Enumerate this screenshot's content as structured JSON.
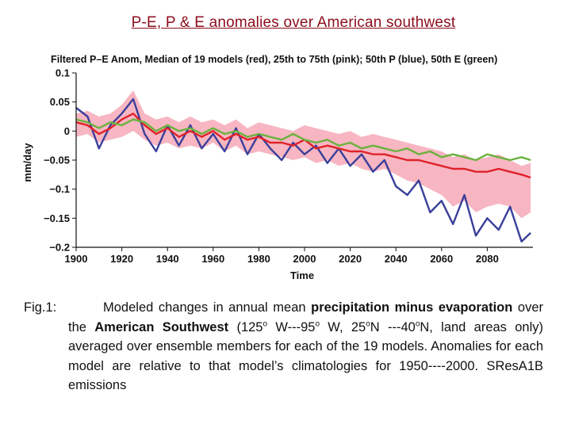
{
  "slide": {
    "title": "P-E, P & E anomalies over American southwest"
  },
  "chart_data": {
    "type": "line",
    "title": "Filtered P–E Anom, Median of 19 models (red), 25th to 75th (pink); 50th P (blue), 50th E (green)",
    "xlabel": "Time",
    "ylabel": "mm/day",
    "xlim": [
      1900,
      2100
    ],
    "ylim": [
      -0.2,
      0.1
    ],
    "x_ticks": [
      "1900",
      "1920",
      "1940",
      "1960",
      "1980",
      "2000",
      "2020",
      "2040",
      "2060",
      "2080"
    ],
    "y_ticks": [
      "0.1",
      "0.05",
      "0",
      "−0.05",
      "−0.1",
      "−0.15",
      "−0.2"
    ],
    "x": [
      1900,
      1905,
      1910,
      1915,
      1920,
      1925,
      1930,
      1935,
      1940,
      1945,
      1950,
      1955,
      1960,
      1965,
      1970,
      1975,
      1980,
      1985,
      1990,
      1995,
      2000,
      2005,
      2010,
      2015,
      2020,
      2025,
      2030,
      2035,
      2040,
      2045,
      2050,
      2055,
      2060,
      2065,
      2070,
      2075,
      2080,
      2085,
      2090,
      2095,
      2099
    ],
    "band": {
      "name": "25th to 75th",
      "lower": [
        -0.01,
        -0.005,
        -0.02,
        -0.015,
        -0.01,
        0.0,
        -0.015,
        -0.025,
        -0.02,
        -0.03,
        -0.025,
        -0.03,
        -0.02,
        -0.035,
        -0.025,
        -0.04,
        -0.035,
        -0.04,
        -0.045,
        -0.05,
        -0.045,
        -0.055,
        -0.05,
        -0.06,
        -0.055,
        -0.065,
        -0.07,
        -0.065,
        -0.075,
        -0.085,
        -0.09,
        -0.1,
        -0.11,
        -0.13,
        -0.12,
        -0.14,
        -0.13,
        -0.125,
        -0.13,
        -0.15,
        -0.14
      ],
      "upper": [
        0.03,
        0.035,
        0.025,
        0.03,
        0.045,
        0.07,
        0.03,
        0.02,
        0.025,
        0.015,
        0.025,
        0.015,
        0.02,
        0.01,
        0.02,
        0.005,
        0.015,
        0.01,
        0.005,
        0.0,
        0.01,
        0.005,
        0.0,
        -0.005,
        0.0,
        -0.01,
        -0.005,
        -0.01,
        -0.015,
        -0.02,
        -0.025,
        -0.03,
        -0.035,
        -0.045,
        -0.04,
        -0.05,
        -0.045,
        -0.04,
        -0.05,
        -0.06,
        -0.055
      ]
    },
    "series": [
      {
        "name": "P (blue)",
        "color": "#3a3f9b",
        "values": [
          0.04,
          0.025,
          -0.03,
          0.01,
          0.03,
          0.055,
          -0.005,
          -0.035,
          0.01,
          -0.025,
          0.01,
          -0.03,
          -0.005,
          -0.035,
          0.005,
          -0.04,
          -0.005,
          -0.03,
          -0.05,
          -0.02,
          -0.04,
          -0.025,
          -0.055,
          -0.03,
          -0.06,
          -0.04,
          -0.07,
          -0.05,
          -0.095,
          -0.11,
          -0.085,
          -0.14,
          -0.12,
          -0.16,
          -0.11,
          -0.18,
          -0.15,
          -0.17,
          -0.13,
          -0.19,
          -0.175
        ]
      },
      {
        "name": "P–E median (red)",
        "color": "#e0222a",
        "values": [
          0.015,
          0.01,
          -0.005,
          0.005,
          0.02,
          0.03,
          0.01,
          -0.005,
          0.005,
          -0.01,
          0.0,
          -0.01,
          0.0,
          -0.015,
          -0.005,
          -0.015,
          -0.01,
          -0.02,
          -0.02,
          -0.025,
          -0.015,
          -0.03,
          -0.025,
          -0.03,
          -0.035,
          -0.035,
          -0.04,
          -0.04,
          -0.045,
          -0.05,
          -0.05,
          -0.055,
          -0.06,
          -0.065,
          -0.065,
          -0.07,
          -0.07,
          -0.065,
          -0.07,
          -0.075,
          -0.08
        ]
      },
      {
        "name": "E (green)",
        "color": "#6ab23e",
        "values": [
          0.02,
          0.015,
          0.005,
          0.015,
          0.01,
          0.02,
          0.015,
          0.0,
          0.01,
          0.0,
          0.005,
          -0.005,
          0.005,
          -0.005,
          0.0,
          -0.01,
          -0.005,
          -0.01,
          -0.015,
          -0.005,
          -0.015,
          -0.02,
          -0.015,
          -0.025,
          -0.02,
          -0.03,
          -0.025,
          -0.03,
          -0.035,
          -0.03,
          -0.04,
          -0.035,
          -0.045,
          -0.04,
          -0.045,
          -0.05,
          -0.04,
          -0.045,
          -0.05,
          -0.045,
          -0.05
        ]
      }
    ]
  },
  "caption": {
    "label": "Fig.1:",
    "t1": "Modeled changes in annual mean ",
    "b1": "precipitation minus evaporation",
    "t2": " over the ",
    "b2": "American Southwest",
    "t3": " (125",
    "o1": "o",
    "t4": " W---95",
    "o2": "o",
    "t5": " W, 25",
    "o3": "o",
    "t6": "N ---40",
    "o4": "o",
    "t7": "N, land areas only) averaged over ensemble members for each of the 19  models. Anomalies for each model are relative to that model’s climatologies  for 1950----2000. SResA1B emissions"
  }
}
